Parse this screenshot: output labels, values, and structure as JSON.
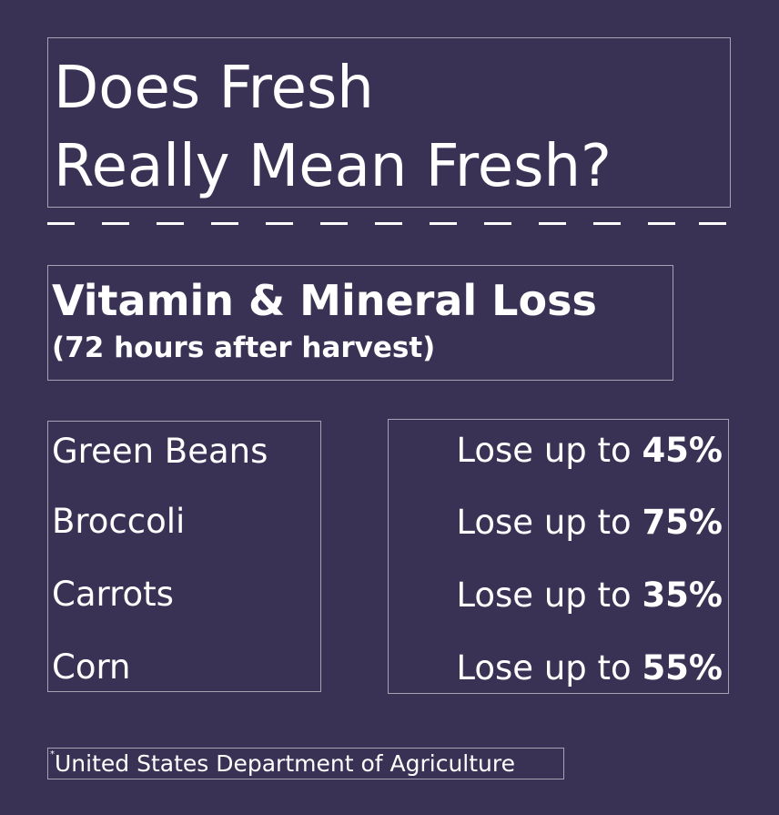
{
  "title": {
    "line1": "Does Fresh",
    "line2": "Really Mean Fresh?"
  },
  "subtitle": {
    "main": "Vitamin & Mineral Loss",
    "sub": "(72 hours after harvest)"
  },
  "items": [
    {
      "name": "Green Beans",
      "prefix": "Lose up to",
      "value": "45%"
    },
    {
      "name": "Broccoli",
      "prefix": "Lose up to",
      "value": "75%"
    },
    {
      "name": "Carrots",
      "prefix": "Lose up to",
      "value": "35%"
    },
    {
      "name": "Corn",
      "prefix": "Lose up to",
      "value": "55%"
    }
  ],
  "footnote": {
    "marker": "*",
    "text": "United States Department of Agriculture"
  },
  "colors": {
    "background": "#3a3254",
    "text": "#ffffff"
  }
}
